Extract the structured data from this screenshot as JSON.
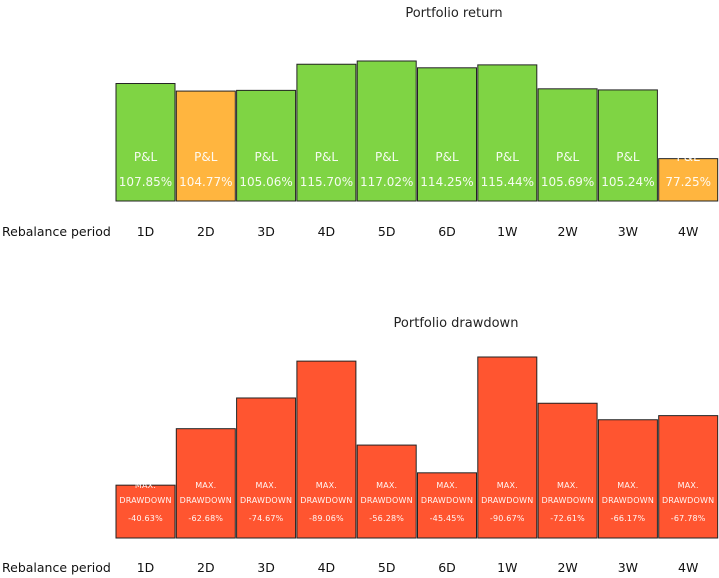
{
  "chart_data": [
    {
      "type": "bar",
      "title": "Portfolio return",
      "row_label": "Rebalance period",
      "categories": [
        "1D",
        "2D",
        "3D",
        "4D",
        "5D",
        "6D",
        "1W",
        "2W",
        "3W",
        "4W"
      ],
      "series": [
        {
          "bar_label": "P&L",
          "values": [
            107.85,
            104.77,
            105.06,
            115.7,
            117.02,
            114.25,
            115.44,
            105.69,
            105.24,
            77.25
          ],
          "display": [
            "107.85%",
            "104.77%",
            "105.06%",
            "115.70%",
            "117.02%",
            "114.25%",
            "115.44%",
            "105.69%",
            "105.24%",
            "77.25%"
          ],
          "status": [
            "good",
            "warn",
            "good",
            "good",
            "good",
            "good",
            "good",
            "good",
            "good",
            "warn"
          ]
        }
      ],
      "colors": {
        "good": "#7fd444",
        "warn": "#ffb53f",
        "good_label": "#ffffff",
        "warn_label": "#ffffff"
      }
    },
    {
      "type": "bar",
      "title": "Portfolio drawdown",
      "row_label": "Rebalance period",
      "categories": [
        "1D",
        "2D",
        "3D",
        "4D",
        "5D",
        "6D",
        "1W",
        "2W",
        "3W",
        "4W"
      ],
      "series": [
        {
          "bar_label_line1": "MAX.",
          "bar_label_line2": "DRAWDOWN",
          "values": [
            -40.63,
            -62.68,
            -74.67,
            -89.06,
            -56.28,
            -45.45,
            -90.67,
            -72.61,
            -66.17,
            -67.78
          ],
          "display": [
            "-40.63%",
            "-62.68%",
            "-74.67%",
            "-89.06%",
            "-56.28%",
            "-45.45%",
            "-90.67%",
            "-72.61%",
            "-66.17%",
            "-67.78%"
          ]
        }
      ],
      "colors": {
        "bar": "#ff5530"
      }
    }
  ]
}
